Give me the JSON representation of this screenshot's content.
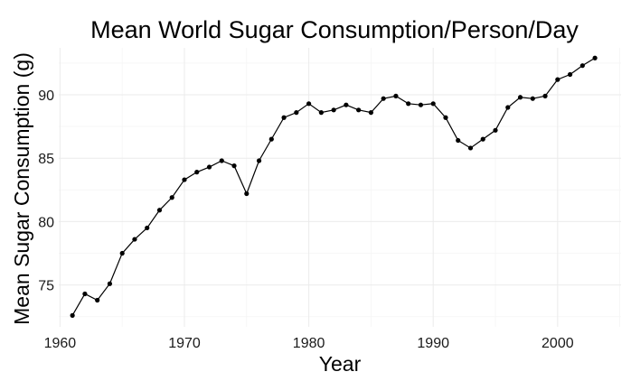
{
  "chart_data": {
    "type": "line",
    "title": "Mean World Sugar Consumption/Person/Day",
    "xlabel": "Year",
    "ylabel": "Mean Sugar Consumption (g)",
    "xlim": [
      1959.9,
      2005.1
    ],
    "ylim": [
      71.7,
      93.7
    ],
    "x_ticks": [
      1960,
      1970,
      1980,
      1990,
      2000
    ],
    "y_ticks": [
      75,
      80,
      85,
      90
    ],
    "x_minor": [
      1965,
      1975,
      1985,
      1995,
      2005
    ],
    "y_minor": [
      72.5,
      77.5,
      82.5,
      87.5,
      92.5
    ],
    "grid": true,
    "series": [
      {
        "name": "Mean Sugar Consumption",
        "x": [
          1961,
          1962,
          1963,
          1964,
          1965,
          1966,
          1967,
          1968,
          1969,
          1970,
          1971,
          1972,
          1973,
          1974,
          1975,
          1976,
          1977,
          1978,
          1979,
          1980,
          1981,
          1982,
          1983,
          1984,
          1985,
          1986,
          1987,
          1988,
          1989,
          1990,
          1991,
          1992,
          1993,
          1994,
          1995,
          1996,
          1997,
          1998,
          1999,
          2000,
          2001,
          2002,
          2003
        ],
        "y": [
          72.6,
          74.3,
          73.8,
          75.1,
          77.5,
          78.6,
          79.5,
          80.9,
          81.9,
          83.3,
          83.9,
          84.3,
          84.8,
          84.4,
          82.2,
          84.8,
          86.5,
          88.2,
          88.6,
          89.3,
          88.6,
          88.8,
          89.2,
          88.8,
          88.6,
          89.7,
          89.9,
          89.3,
          89.2,
          89.3,
          88.2,
          86.4,
          85.8,
          86.5,
          87.2,
          89.0,
          89.8,
          89.7,
          89.9,
          91.2,
          91.6,
          92.3,
          92.9
        ]
      }
    ]
  }
}
